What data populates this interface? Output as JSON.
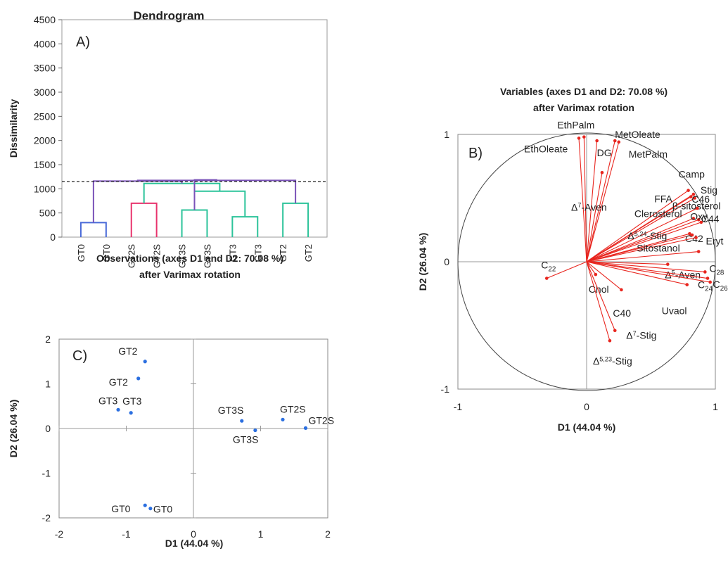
{
  "chart_data": [
    {
      "type": "dendrogram",
      "title": "Dendrogram",
      "panel_label": "A)",
      "ylabel": "Dissimilarity",
      "ylim": [
        0,
        4500
      ],
      "yticks": [
        0,
        500,
        1000,
        1500,
        2000,
        2500,
        3000,
        3500,
        4000,
        4500
      ],
      "leaves": [
        "GT0",
        "GT0",
        "GT2S",
        "GT2S",
        "GT3S",
        "GT3S",
        "GT3",
        "GT3",
        "GT2",
        "GT2"
      ],
      "cut_line": 1150,
      "merges": [
        {
          "left": 0,
          "right": 1,
          "height": 300,
          "color": "#4a6ad8"
        },
        {
          "left": 2,
          "right": 3,
          "height": 700,
          "color": "#e8336d"
        },
        {
          "left": 4,
          "right": 5,
          "height": 560,
          "color": "#2cc39a"
        },
        {
          "left": 6,
          "right": 7,
          "height": 420,
          "color": "#2cc39a"
        },
        {
          "left": 8,
          "right": 9,
          "height": 700,
          "color": "#2cc39a"
        },
        {
          "left": 12,
          "right": 13,
          "height": 950,
          "color": "#2cc39a"
        },
        {
          "left": 11,
          "right": 15,
          "height": 1110,
          "color": "#2cc39a"
        },
        {
          "left": 16,
          "right": 10,
          "height": 1160,
          "color": "#7a52b8"
        },
        {
          "left": 17,
          "right": 14,
          "height": 1175,
          "color": "#7a52b8"
        },
        {
          "left": 18,
          "right": 12,
          "height": 1185,
          "color": "#7a52b8"
        }
      ]
    },
    {
      "type": "scatter",
      "title": "Variables (axes D1 and D2: 70.08 %)",
      "subtitle": "after Varimax rotation",
      "panel_label": "B)",
      "xlabel": "D1 (44.04 %)",
      "ylabel": "D2 (26.04 %)",
      "xlim": [
        -1,
        1
      ],
      "ylim": [
        -1,
        1
      ],
      "xticks": [
        "-1",
        "0",
        "1"
      ],
      "yticks": [
        "-1",
        "0",
        "1"
      ],
      "points": [
        {
          "label": "EthPalm",
          "x": -0.02,
          "y": 0.98
        },
        {
          "label": "EthOleate",
          "x": -0.06,
          "y": 0.97
        },
        {
          "label": "DG",
          "x": 0.08,
          "y": 0.95
        },
        {
          "label": "MetOleate",
          "x": 0.22,
          "y": 0.95
        },
        {
          "label": "MetPalm",
          "x": 0.25,
          "y": 0.94
        },
        {
          "label": "Δ7-Aven",
          "x": 0.12,
          "y": 0.7
        },
        {
          "label": "Camp",
          "x": 0.79,
          "y": 0.56
        },
        {
          "label": "Stig",
          "x": 0.83,
          "y": 0.53
        },
        {
          "label": "FFA",
          "x": 0.81,
          "y": 0.51
        },
        {
          "label": "β-sitosterol",
          "x": 0.84,
          "y": 0.5
        },
        {
          "label": "C46",
          "x": 0.86,
          "y": 0.42
        },
        {
          "label": "Clerosterol",
          "x": 0.83,
          "y": 0.34
        },
        {
          "label": "Oxy",
          "x": 0.87,
          "y": 0.33
        },
        {
          "label": "C44",
          "x": 0.89,
          "y": 0.31
        },
        {
          "label": "Δ5,24-Stig",
          "x": 0.8,
          "y": 0.22
        },
        {
          "label": "C42",
          "x": 0.82,
          "y": 0.21
        },
        {
          "label": "Eryt",
          "x": 0.85,
          "y": 0.19
        },
        {
          "label": "Sitostanol",
          "x": 0.87,
          "y": 0.08
        },
        {
          "label": "Δ5-Aven",
          "x": 0.63,
          "y": -0.02
        },
        {
          "label": "C28",
          "x": 0.92,
          "y": -0.08
        },
        {
          "label": "C26",
          "x": 0.96,
          "y": -0.16
        },
        {
          "label": "C24",
          "x": 0.94,
          "y": -0.13
        },
        {
          "label": "C22",
          "x": -0.31,
          "y": -0.13
        },
        {
          "label": "Chol",
          "x": 0.07,
          "y": -0.1
        },
        {
          "label": "C40",
          "x": 0.27,
          "y": -0.22
        },
        {
          "label": "Uvaol",
          "x": 0.78,
          "y": -0.18
        },
        {
          "label": "Δ7-Stig",
          "x": 0.22,
          "y": -0.54
        },
        {
          "label": "Δ5,23-Stig",
          "x": 0.18,
          "y": -0.62
        }
      ]
    },
    {
      "type": "scatter",
      "title": "Observations (axes D1 and D2: 70.08 %)",
      "subtitle": "after Varimax rotation",
      "panel_label": "C)",
      "xlabel": "D1 (44.04 %)",
      "ylabel": "D2 (26.04 %)",
      "xlim": [
        -2,
        2
      ],
      "ylim": [
        -2,
        2
      ],
      "xticks": [
        "-2",
        "-1",
        "0",
        "1",
        "2"
      ],
      "yticks": [
        "-2",
        "-1",
        "0",
        "1",
        "2"
      ],
      "points": [
        {
          "label": "GT2",
          "x": -0.72,
          "y": 1.5
        },
        {
          "label": "GT2",
          "x": -0.82,
          "y": 1.12
        },
        {
          "label": "GT3",
          "x": -1.12,
          "y": 0.42
        },
        {
          "label": "GT3",
          "x": -0.93,
          "y": 0.35
        },
        {
          "label": "GT3S",
          "x": 0.72,
          "y": 0.17
        },
        {
          "label": "GT3S",
          "x": 0.92,
          "y": -0.04
        },
        {
          "label": "GT2S",
          "x": 1.33,
          "y": 0.2
        },
        {
          "label": "GT2S",
          "x": 1.67,
          "y": 0.01
        },
        {
          "label": "GT0",
          "x": -0.72,
          "y": -1.72
        },
        {
          "label": "GT0",
          "x": -0.64,
          "y": -1.79
        }
      ]
    }
  ]
}
